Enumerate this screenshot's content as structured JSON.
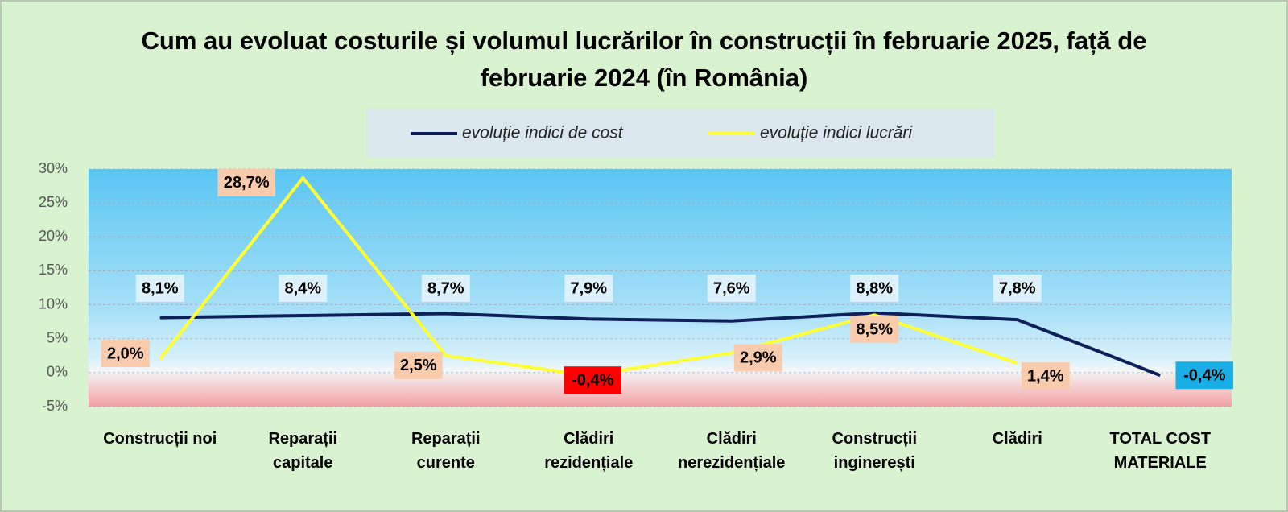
{
  "chart_data": {
    "type": "line",
    "title": "Cum au evoluat costurile și volumul lucrărilor în construcții în februarie 2025, față de februarie 2024 (în România)",
    "categories": [
      "Construcții noi",
      "Reparații capitale",
      "Reparații curente",
      "Clădiri rezidențiale",
      "Clădiri nerezidențiale",
      "Construcții inginerești",
      "Clădiri",
      "TOTAL COST MATERIALE"
    ],
    "series": [
      {
        "name": "evoluție indici de cost",
        "color": "#0e1f5b",
        "label_colors": [
          "#dcf1fb",
          "#dcf1fb",
          "#dcf1fb",
          "#dcf1fb",
          "#dcf1fb",
          "#dcf1fb",
          "#dcf1fb",
          "#1aaee6"
        ],
        "values": [
          8.1,
          8.4,
          8.7,
          7.9,
          7.6,
          8.8,
          7.8,
          -0.4
        ],
        "value_labels": [
          "8,1%",
          "8,4%",
          "8,7%",
          "7,9%",
          "7,6%",
          "8,8%",
          "7,8%",
          "-0,4%"
        ]
      },
      {
        "name": "evoluție indici lucrări",
        "color": "#ffff33",
        "label_colors": [
          "#f8cbad",
          "#f8cbad",
          "#f8cbad",
          "#ff0000",
          "#f8cbad",
          "#f8cbad",
          "#f8cbad",
          null
        ],
        "values": [
          2.0,
          28.7,
          2.5,
          -0.4,
          2.9,
          8.5,
          1.4,
          null
        ],
        "value_labels": [
          "2,0%",
          "28,7%",
          "2,5%",
          "-0,4%",
          "2,9%",
          "8,5%",
          "1,4%",
          null
        ]
      }
    ],
    "ylim": [
      -5,
      30
    ],
    "yticks": [
      {
        "value": -5,
        "label": "-5%"
      },
      {
        "value": 0,
        "label": "0%"
      },
      {
        "value": 5,
        "label": "5%"
      },
      {
        "value": 10,
        "label": "10%"
      },
      {
        "value": 15,
        "label": "15%"
      },
      {
        "value": 20,
        "label": "20%"
      },
      {
        "value": 25,
        "label": "25%"
      },
      {
        "value": 30,
        "label": "30%"
      }
    ],
    "grid": true,
    "legend": "top"
  }
}
